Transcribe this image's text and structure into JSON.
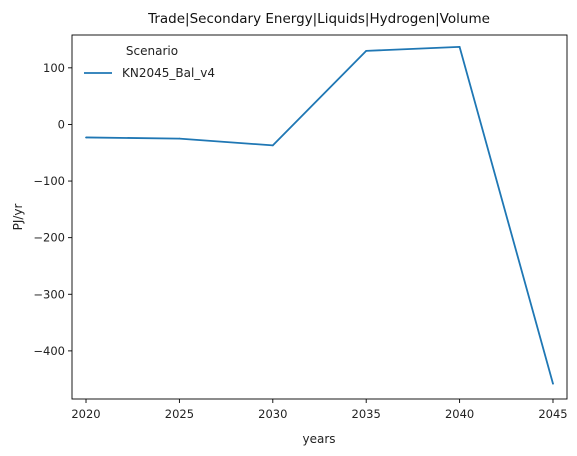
{
  "chart_data": {
    "type": "line",
    "title": "Trade|Secondary Energy|Liquids|Hydrogen|Volume",
    "xlabel": "years",
    "ylabel": "PJ/yr",
    "x": [
      2020,
      2025,
      2030,
      2035,
      2040,
      2045
    ],
    "xticks": [
      "2020",
      "2025",
      "2030",
      "2035",
      "2040",
      "2045"
    ],
    "yticks": [
      "100",
      "0",
      "−100",
      "−200",
      "−300",
      "−400"
    ],
    "xlim": [
      2019.25,
      2045.75
    ],
    "ylim": [
      -485,
      158
    ],
    "grid": false,
    "legend": {
      "title": "Scenario",
      "placement": "top-left"
    },
    "series": [
      {
        "name": "KN2045_Bal_v4",
        "color": "#1f77b4",
        "values": [
          -23,
          -25,
          -37,
          130,
          137,
          -458
        ]
      }
    ]
  }
}
